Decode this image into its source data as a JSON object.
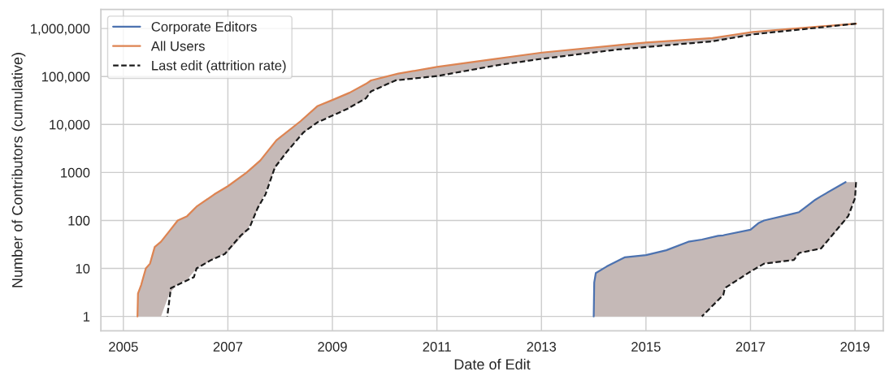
{
  "chart_data": {
    "type": "line",
    "xlabel": "Date of Edit",
    "ylabel": "Number of Contributors (cumulative)",
    "log": "y",
    "grid": true,
    "legend": "top left",
    "xlim": [
      2004.57,
      2019.54
    ],
    "xticks": [
      2005,
      2007,
      2009,
      2011,
      2013,
      2015,
      2017,
      2019
    ],
    "ylim": [
      0.5,
      2500000
    ],
    "yticks": [
      1,
      10,
      100,
      1000,
      {
        "value": 10000,
        "label": "10,000"
      },
      {
        "value": 100000,
        "label": "100,000"
      },
      {
        "value": 1000000,
        "label": "1,000,000"
      }
    ],
    "series": [
      {
        "name": "Corporate Editors",
        "color": "#4c72b0",
        "line_style": "solid",
        "x": [
          2014.0,
          2014.01,
          2014.04,
          2014.25,
          2014.59,
          2015.0,
          2015.39,
          2015.81,
          2016.07,
          2016.38,
          2016.48,
          2016.51,
          2017.0,
          2017.16,
          2017.26,
          2017.83,
          2017.93,
          2018.24,
          2018.35,
          2018.82,
          2018.87,
          2019.0,
          2019.02
        ],
        "values": [
          1,
          5.1,
          8,
          11,
          17,
          19,
          24,
          36,
          40,
          48,
          49,
          50,
          64,
          89,
          100,
          140,
          149,
          270,
          320,
          630,
          null,
          null,
          null
        ],
        "lower": [
          1,
          1,
          1,
          1,
          1,
          1,
          1,
          1,
          1,
          2.2,
          2.8,
          3.9,
          8.6,
          11,
          12.6,
          15,
          21,
          24,
          26,
          100,
          123,
          290,
          630
        ],
        "upper": [
          1,
          5.1,
          8,
          11,
          17,
          19,
          24,
          36,
          40,
          48,
          49,
          50,
          64,
          89,
          100,
          140,
          149,
          270,
          320,
          630,
          630,
          630,
          630
        ]
      },
      {
        "name": "All Users",
        "color": "#dd8452",
        "line_style": "solid",
        "x": [
          2005.27,
          2005.28,
          2005.34,
          2005.43,
          2005.51,
          2005.6,
          2005.72,
          2005.88,
          2006.04,
          2006.22,
          2006.4,
          2006.74,
          2007.0,
          2007.36,
          2007.62,
          2007.93,
          2008.39,
          2008.71,
          2009.02,
          2009.33,
          2009.64,
          2009.74,
          2010.26,
          2011.0,
          2012.08,
          2013.01,
          2014.46,
          2015.0,
          2016.27,
          2017.05,
          2019.02
        ],
        "values": [
          1,
          3,
          4.5,
          10,
          12.6,
          28,
          36,
          60,
          100,
          123,
          194,
          350,
          518,
          1000,
          1780,
          4700,
          11700,
          24000,
          33000,
          46000,
          70000,
          83000,
          115000,
          158000,
          230000,
          315000,
          450000,
          510000,
          630000,
          850000,
          1260000
        ],
        "lower": [
          1,
          1,
          1,
          1,
          1,
          1,
          1,
          3,
          4.8,
          5.8,
          10,
          16,
          22,
          60,
          220,
          1400,
          6000,
          11000,
          16000,
          22000,
          35000,
          49000,
          84000,
          102000,
          165000,
          234000,
          365000,
          410000,
          540000,
          755000,
          1260000
        ],
        "upper": [
          1,
          3,
          4.5,
          10,
          12.6,
          28,
          36,
          60,
          100,
          123,
          194,
          350,
          518,
          1000,
          1780,
          4700,
          11700,
          24000,
          33000,
          46000,
          70000,
          83000,
          115000,
          158000,
          230000,
          315000,
          450000,
          510000,
          630000,
          850000,
          1260000
        ]
      },
      {
        "name": "Last edit (attrition rate)",
        "color": "#1a1a1a",
        "line_style": "dashed",
        "x": [
          2005.84,
          2005.91,
          2006.35,
          2006.4,
          2006.68,
          2006.94,
          2007.25,
          2007.41,
          2007.57,
          2007.72,
          2007.9,
          2008.14,
          2008.45,
          2008.71,
          2009.28,
          2009.64,
          2009.74,
          2010.21,
          2011.0,
          2012.13,
          2013.01,
          2014.46,
          2015.0,
          2016.27,
          2017.05,
          2019.02
        ],
        "values": [
          1,
          3.9,
          6.6,
          10,
          15,
          20,
          49,
          69,
          182,
          350,
          1280,
          2800,
          6900,
          11000,
          21000,
          35000,
          49000,
          83000,
          102000,
          170000,
          234000,
          365000,
          410000,
          540000,
          755000,
          1260000
        ]
      },
      {
        "color": "#1a1a1a",
        "line_style": "dashed",
        "x": [
          2016.07,
          2016.48,
          2016.51,
          2017.0,
          2017.26,
          2017.83,
          2017.93,
          2018.35,
          2018.87,
          2019.0,
          2019.02
        ],
        "values": [
          1,
          2.8,
          3.9,
          8.6,
          12.6,
          15,
          21,
          26,
          123,
          290,
          630
        ]
      }
    ]
  }
}
